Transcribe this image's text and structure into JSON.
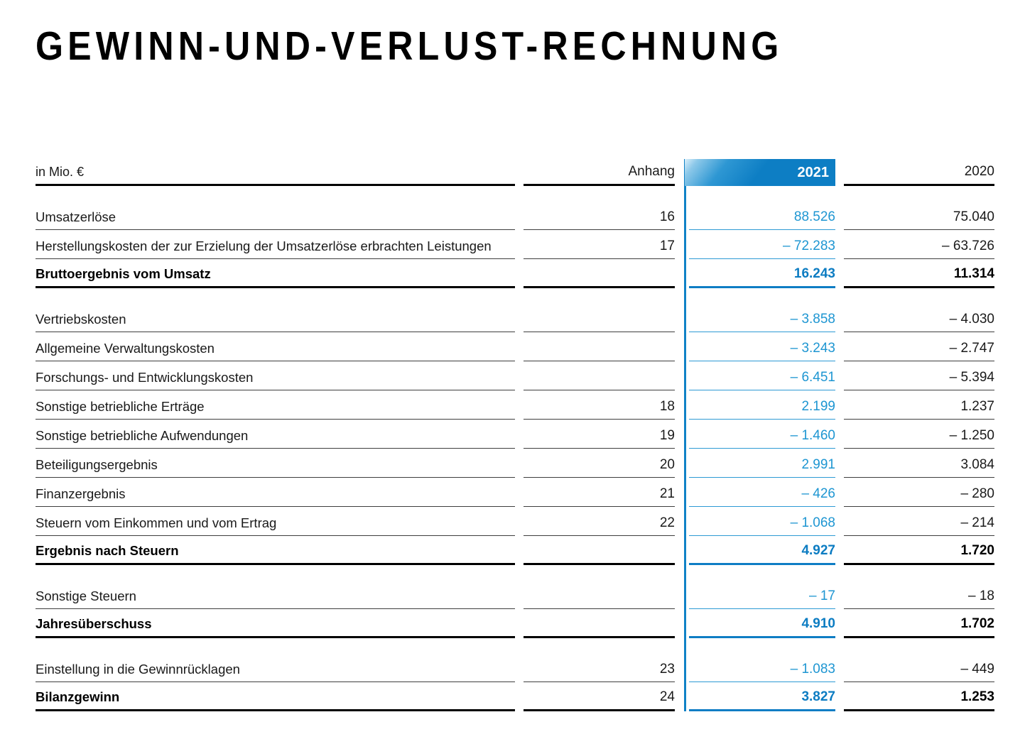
{
  "title": "GEWINN-UND-VERLUST-RECHNUNG",
  "table": {
    "unit_label": "in Mio. €",
    "columns": {
      "anhang": "Anhang",
      "y2021": "2021",
      "y2020": "2020"
    },
    "colors": {
      "accent_blue": "#0d7ec4",
      "value_blue": "#1e96d2",
      "thin_rule_blue": "#2d9ad4",
      "rule_black": "#000000"
    },
    "rows": [
      {
        "label": "Umsatzerlöse",
        "anhang": "16",
        "v2021": "88.526",
        "v2020": "75.040",
        "bold": false,
        "section_start": true
      },
      {
        "label": "Herstellungskosten der zur Erzielung der Umsatzerlöse erbrachten Leistungen",
        "anhang": "17",
        "v2021": "– 72.283",
        "v2020": "– 63.726",
        "bold": false,
        "section_start": false
      },
      {
        "label": "Bruttoergebnis vom Umsatz",
        "anhang": "",
        "v2021": "16.243",
        "v2020": "11.314",
        "bold": true,
        "section_start": false
      },
      {
        "label": "Vertriebskosten",
        "anhang": "",
        "v2021": "– 3.858",
        "v2020": "– 4.030",
        "bold": false,
        "section_start": true
      },
      {
        "label": "Allgemeine Verwaltungskosten",
        "anhang": "",
        "v2021": "– 3.243",
        "v2020": "– 2.747",
        "bold": false,
        "section_start": false
      },
      {
        "label": "Forschungs- und Entwicklungskosten",
        "anhang": "",
        "v2021": "– 6.451",
        "v2020": "– 5.394",
        "bold": false,
        "section_start": false
      },
      {
        "label": "Sonstige betriebliche Erträge",
        "anhang": "18",
        "v2021": "2.199",
        "v2020": "1.237",
        "bold": false,
        "section_start": false
      },
      {
        "label": "Sonstige betriebliche Aufwendungen",
        "anhang": "19",
        "v2021": "– 1.460",
        "v2020": "– 1.250",
        "bold": false,
        "section_start": false
      },
      {
        "label": "Beteiligungsergebnis",
        "anhang": "20",
        "v2021": "2.991",
        "v2020": "3.084",
        "bold": false,
        "section_start": false
      },
      {
        "label": "Finanzergebnis",
        "anhang": "21",
        "v2021": "– 426",
        "v2020": "– 280",
        "bold": false,
        "section_start": false
      },
      {
        "label": "Steuern vom Einkommen und vom Ertrag",
        "anhang": "22",
        "v2021": "– 1.068",
        "v2020": "– 214",
        "bold": false,
        "section_start": false
      },
      {
        "label": "Ergebnis nach Steuern",
        "anhang": "",
        "v2021": "4.927",
        "v2020": "1.720",
        "bold": true,
        "section_start": false
      },
      {
        "label": "Sonstige Steuern",
        "anhang": "",
        "v2021": "– 17",
        "v2020": "– 18",
        "bold": false,
        "section_start": true
      },
      {
        "label": "Jahresüberschuss",
        "anhang": "",
        "v2021": "4.910",
        "v2020": "1.702",
        "bold": true,
        "section_start": false
      },
      {
        "label": "Einstellung in die Gewinnrücklagen",
        "anhang": "23",
        "v2021": "– 1.083",
        "v2020": "– 449",
        "bold": false,
        "section_start": true
      },
      {
        "label": "Bilanzgewinn",
        "anhang": "24",
        "v2021": "3.827",
        "v2020": "1.253",
        "bold": true,
        "section_start": false
      }
    ]
  }
}
